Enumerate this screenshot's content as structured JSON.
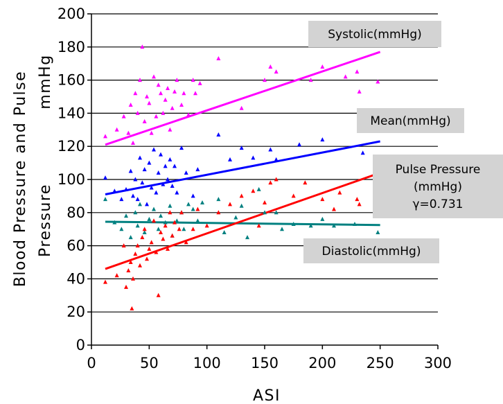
{
  "chart_data": {
    "type": "scatter",
    "title": "",
    "xlabel": "ASI",
    "ylabel": {
      "line1": "Blood Pressure and Pulse",
      "line2": "Pressure",
      "unit": "mmHg"
    },
    "xlim": [
      0,
      300
    ],
    "ylim": [
      0,
      200
    ],
    "x_ticks": [
      0,
      50,
      100,
      150,
      200,
      250,
      300
    ],
    "y_ticks": [
      0,
      20,
      40,
      60,
      80,
      100,
      120,
      140,
      160,
      180,
      200
    ],
    "grid": "horizontal",
    "series": [
      {
        "key": "systolic",
        "color": "#ff00ff",
        "trend": [
          [
            12,
            121
          ],
          [
            250,
            177
          ]
        ],
        "points": [
          [
            12,
            126
          ],
          [
            22,
            130
          ],
          [
            28,
            138
          ],
          [
            32,
            128
          ],
          [
            34,
            145
          ],
          [
            36,
            122
          ],
          [
            38,
            152
          ],
          [
            40,
            140
          ],
          [
            42,
            160
          ],
          [
            44,
            180
          ],
          [
            46,
            135
          ],
          [
            48,
            150
          ],
          [
            50,
            146
          ],
          [
            52,
            128
          ],
          [
            54,
            162
          ],
          [
            56,
            138
          ],
          [
            58,
            157
          ],
          [
            60,
            152
          ],
          [
            62,
            140
          ],
          [
            64,
            148
          ],
          [
            66,
            155
          ],
          [
            68,
            130
          ],
          [
            70,
            143
          ],
          [
            72,
            153
          ],
          [
            74,
            160
          ],
          [
            78,
            145
          ],
          [
            80,
            152
          ],
          [
            84,
            139
          ],
          [
            88,
            160
          ],
          [
            90,
            152
          ],
          [
            94,
            158
          ],
          [
            110,
            173
          ],
          [
            130,
            143
          ],
          [
            150,
            160
          ],
          [
            155,
            168
          ],
          [
            160,
            165
          ],
          [
            190,
            160
          ],
          [
            200,
            168
          ],
          [
            220,
            162
          ],
          [
            230,
            165
          ],
          [
            232,
            153
          ],
          [
            248,
            159
          ]
        ]
      },
      {
        "key": "mean",
        "color": "#0000ff",
        "trend": [
          [
            12,
            91
          ],
          [
            250,
            123
          ]
        ],
        "points": [
          [
            12,
            101
          ],
          [
            20,
            93
          ],
          [
            26,
            88
          ],
          [
            30,
            94
          ],
          [
            34,
            105
          ],
          [
            36,
            90
          ],
          [
            38,
            100
          ],
          [
            40,
            88
          ],
          [
            42,
            113
          ],
          [
            44,
            98
          ],
          [
            46,
            106
          ],
          [
            48,
            85
          ],
          [
            50,
            110
          ],
          [
            52,
            95
          ],
          [
            54,
            118
          ],
          [
            56,
            92
          ],
          [
            58,
            104
          ],
          [
            60,
            115
          ],
          [
            62,
            97
          ],
          [
            64,
            108
          ],
          [
            66,
            100
          ],
          [
            68,
            112
          ],
          [
            70,
            96
          ],
          [
            72,
            108
          ],
          [
            74,
            92
          ],
          [
            78,
            119
          ],
          [
            82,
            104
          ],
          [
            88,
            90
          ],
          [
            92,
            106
          ],
          [
            110,
            127
          ],
          [
            120,
            112
          ],
          [
            130,
            119
          ],
          [
            140,
            113
          ],
          [
            155,
            118
          ],
          [
            160,
            112
          ],
          [
            180,
            121
          ],
          [
            200,
            124
          ],
          [
            235,
            116
          ]
        ]
      },
      {
        "key": "diastolic",
        "color": "#008080",
        "trend": [
          [
            12,
            74.5
          ],
          [
            250,
            72.5
          ]
        ],
        "points": [
          [
            12,
            88
          ],
          [
            20,
            74
          ],
          [
            26,
            70
          ],
          [
            30,
            78
          ],
          [
            34,
            65
          ],
          [
            38,
            80
          ],
          [
            40,
            72
          ],
          [
            42,
            85
          ],
          [
            46,
            68
          ],
          [
            50,
            76
          ],
          [
            54,
            82
          ],
          [
            58,
            70
          ],
          [
            60,
            78
          ],
          [
            64,
            74
          ],
          [
            68,
            84
          ],
          [
            70,
            66
          ],
          [
            74,
            75
          ],
          [
            78,
            80
          ],
          [
            80,
            70
          ],
          [
            84,
            85
          ],
          [
            88,
            82
          ],
          [
            92,
            75
          ],
          [
            96,
            86
          ],
          [
            110,
            88
          ],
          [
            115,
            68
          ],
          [
            125,
            77
          ],
          [
            130,
            84
          ],
          [
            135,
            65
          ],
          [
            145,
            94
          ],
          [
            150,
            80
          ],
          [
            160,
            80
          ],
          [
            165,
            70
          ],
          [
            175,
            73
          ],
          [
            190,
            72
          ],
          [
            200,
            76
          ],
          [
            210,
            72
          ],
          [
            228,
            73
          ],
          [
            248,
            68
          ]
        ]
      },
      {
        "key": "pulse",
        "color": "#ff0000",
        "trend": [
          [
            12,
            46
          ],
          [
            250,
            104
          ]
        ],
        "points": [
          [
            12,
            38
          ],
          [
            22,
            42
          ],
          [
            28,
            60
          ],
          [
            30,
            35
          ],
          [
            32,
            45
          ],
          [
            34,
            50
          ],
          [
            35,
            22
          ],
          [
            36,
            40
          ],
          [
            38,
            55
          ],
          [
            40,
            60
          ],
          [
            42,
            48
          ],
          [
            44,
            65
          ],
          [
            46,
            70
          ],
          [
            48,
            52
          ],
          [
            50,
            58
          ],
          [
            52,
            62
          ],
          [
            54,
            75
          ],
          [
            56,
            56
          ],
          [
            58,
            30
          ],
          [
            60,
            68
          ],
          [
            62,
            64
          ],
          [
            64,
            72
          ],
          [
            66,
            58
          ],
          [
            68,
            80
          ],
          [
            70,
            66
          ],
          [
            72,
            74
          ],
          [
            76,
            70
          ],
          [
            78,
            80
          ],
          [
            82,
            62
          ],
          [
            88,
            70
          ],
          [
            92,
            82
          ],
          [
            100,
            72
          ],
          [
            110,
            80
          ],
          [
            120,
            85
          ],
          [
            130,
            90
          ],
          [
            140,
            93
          ],
          [
            145,
            72
          ],
          [
            150,
            86
          ],
          [
            155,
            98
          ],
          [
            160,
            100
          ],
          [
            175,
            90
          ],
          [
            185,
            98
          ],
          [
            200,
            88
          ],
          [
            210,
            82
          ],
          [
            215,
            92
          ],
          [
            230,
            88
          ],
          [
            232,
            85
          ]
        ]
      }
    ],
    "annotations": [
      {
        "key": "systolic",
        "lines": [
          "Systolic(mmHg)"
        ]
      },
      {
        "key": "mean",
        "lines": [
          "Mean(mmHg)"
        ]
      },
      {
        "key": "pulse",
        "lines": [
          "Pulse Pressure",
          "(mmHg)",
          "γ=0.731"
        ]
      },
      {
        "key": "diastolic",
        "lines": [
          "Diastolic(mmHg)"
        ]
      }
    ]
  }
}
